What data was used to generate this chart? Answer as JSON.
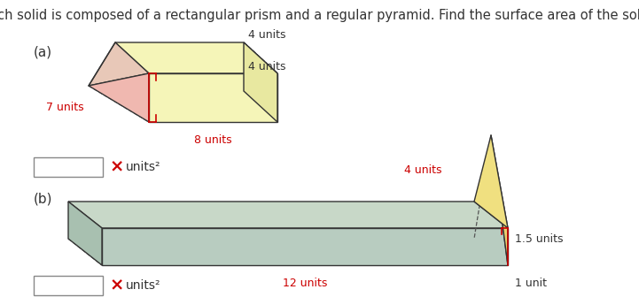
{
  "title": "Each solid is composed of a rectangular prism and a regular pyramid. Find the surface area of the solid.",
  "title_fontsize": 10.5,
  "bg_color": "#ffffff",
  "text_color": "#333333",
  "red_color": "#cc0000",
  "label_a": "(a)",
  "label_b": "(b)",
  "a_dims": {
    "top": "4 units",
    "right": "4 units",
    "bottom": "8 units",
    "left": "7 units"
  },
  "b_dims": {
    "top": "4 units",
    "right_top": "1.5 units",
    "bottom": "12 units",
    "right_bottom": "1 unit"
  },
  "prism_a_top_color": "#f5f5b8",
  "prism_a_front_color": "#f5f5b8",
  "prism_a_right_color": "#f5f5b8",
  "pyr_a_front_color": "#f0b8b0",
  "pyr_a_top_color": "#e8c8b8",
  "pyr_a_bottom_color": "#d8a898",
  "prism_b_top_color": "#c8d8c8",
  "prism_b_front_color": "#b8ccc0",
  "prism_b_left_color": "#a8c0b0",
  "pyr_b_front_color": "#e8d070",
  "pyr_b_right_color": "#f0e080",
  "pyr_b_left_color": "#c8b050",
  "edge_color": "#333333",
  "dash_color": "#555555"
}
